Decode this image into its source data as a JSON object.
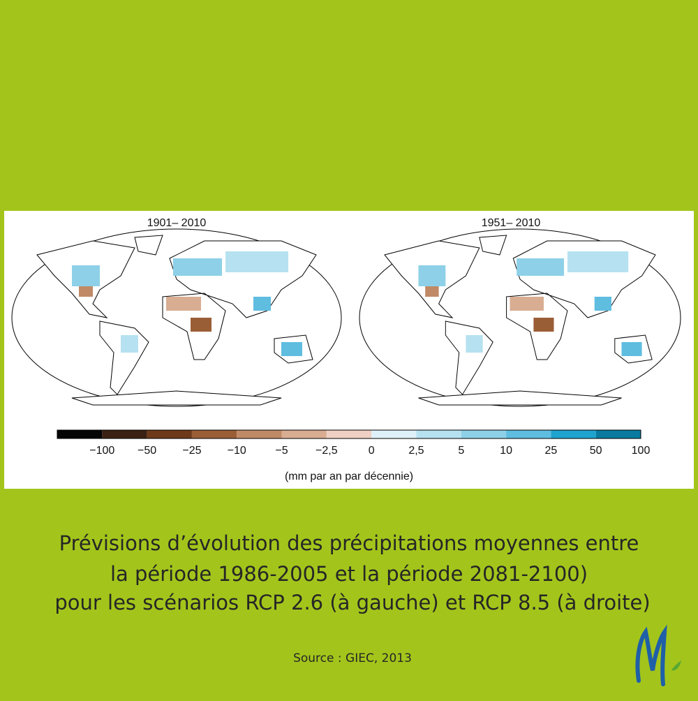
{
  "panels": [
    {
      "title": "1901– 2010"
    },
    {
      "title": "1951– 2010"
    }
  ],
  "legend": {
    "ticks": [
      "−100",
      "−50",
      "−25",
      "−10",
      "−5",
      "−2,5",
      "0",
      "2,5",
      "5",
      "10",
      "25",
      "50",
      "100"
    ],
    "colors": [
      "#050505",
      "#3b2113",
      "#6e3a1a",
      "#9a5e36",
      "#c08a67",
      "#d8ad92",
      "#eed1c4",
      "#dff1f8",
      "#b6e1f0",
      "#8ed0e8",
      "#5fbde0",
      "#1fa3cf",
      "#0a7aa0"
    ],
    "unit": "(mm par an par décennie)"
  },
  "caption": [
    "Prévisions d’évolution des précipitations moyennes entre",
    "la période 1986-2005 et la période 2081-2100)",
    "pour les scénarios RCP 2.6 (à gauche) et RCP 8.5 (à droite)"
  ],
  "source": "Source : GIEC, 2013"
}
